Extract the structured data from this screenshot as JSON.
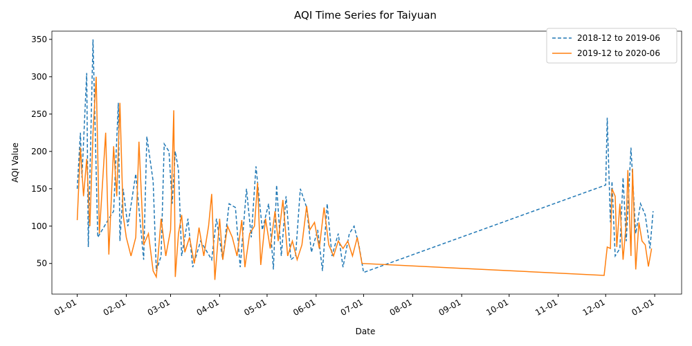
{
  "chart_data": {
    "type": "line",
    "title": "AQI Time Series for Taiyuan",
    "xlabel": "Date",
    "ylabel": "AQI Value",
    "xlim": [
      -16,
      382
    ],
    "ylim": [
      9,
      361
    ],
    "xticks": [
      {
        "value": 0,
        "label": "01-01"
      },
      {
        "value": 31,
        "label": "02-01"
      },
      {
        "value": 59,
        "label": "03-01"
      },
      {
        "value": 90,
        "label": "04-01"
      },
      {
        "value": 120,
        "label": "05-01"
      },
      {
        "value": 151,
        "label": "06-01"
      },
      {
        "value": 181,
        "label": "07-01"
      },
      {
        "value": 212,
        "label": "08-01"
      },
      {
        "value": 243,
        "label": "09-01"
      },
      {
        "value": 273,
        "label": "10-01"
      },
      {
        "value": 304,
        "label": "11-01"
      },
      {
        "value": 334,
        "label": "12-01"
      },
      {
        "value": 365,
        "label": "01-01"
      }
    ],
    "yticks": [
      50,
      100,
      150,
      200,
      250,
      300,
      350
    ],
    "legend": "upper right",
    "series": [
      {
        "name": "2018-12 to 2019-06",
        "color": "#1f77b4",
        "dash": true,
        "x": [
          0,
          2,
          3,
          6,
          7,
          10,
          13,
          20,
          23,
          26,
          27,
          29,
          32,
          37,
          42,
          44,
          48,
          50,
          53,
          55,
          58,
          60,
          62,
          64,
          66,
          70,
          73,
          78,
          85,
          88,
          92,
          96,
          100,
          103,
          107,
          110,
          113,
          117,
          121,
          124,
          126,
          129,
          132,
          135,
          138,
          141,
          145,
          148,
          152,
          155,
          158,
          161,
          165,
          168,
          172,
          175,
          178,
          181,
          334,
          335,
          337,
          338,
          340,
          343,
          345,
          347,
          350,
          353,
          356,
          359,
          362,
          364
        ],
        "values": [
          150,
          225,
          165,
          305,
          72,
          350,
          85,
          110,
          120,
          265,
          80,
          150,
          100,
          170,
          55,
          220,
          160,
          40,
          60,
          210,
          200,
          130,
          200,
          175,
          60,
          110,
          45,
          80,
          55,
          110,
          55,
          130,
          125,
          45,
          150,
          85,
          180,
          95,
          130,
          42,
          155,
          60,
          140,
          55,
          60,
          150,
          125,
          65,
          95,
          40,
          130,
          60,
          90,
          45,
          90,
          100,
          75,
          38,
          155,
          245,
          105,
          160,
          60,
          70,
          165,
          80,
          205,
          90,
          130,
          115,
          70,
          120
        ]
      },
      {
        "name": "2019-12 to 2020-06",
        "color": "#ff7f0e",
        "dash": false,
        "x": [
          0,
          2,
          4,
          6,
          8,
          10,
          12,
          14,
          18,
          20,
          23,
          25,
          27,
          29,
          31,
          34,
          37,
          39,
          42,
          45,
          48,
          50,
          53,
          56,
          59,
          61,
          62,
          64,
          66,
          68,
          71,
          74,
          77,
          80,
          83,
          85,
          87,
          90,
          92,
          95,
          98,
          101,
          104,
          106,
          109,
          112,
          114,
          116,
          119,
          122,
          125,
          127,
          130,
          133,
          136,
          139,
          142,
          145,
          147,
          150,
          153,
          156,
          159,
          162,
          165,
          168,
          171,
          174,
          177,
          180,
          333,
          335,
          337,
          338,
          340,
          341,
          343,
          345,
          347,
          348,
          350,
          351,
          353,
          355,
          357,
          359,
          361,
          363
        ],
        "values": [
          108,
          205,
          140,
          190,
          100,
          225,
          300,
          90,
          225,
          62,
          207,
          140,
          265,
          115,
          85,
          60,
          85,
          213,
          75,
          90,
          40,
          32,
          110,
          60,
          95,
          255,
          32,
          90,
          115,
          65,
          85,
          50,
          98,
          60,
          100,
          143,
          28,
          110,
          55,
          100,
          85,
          60,
          108,
          45,
          90,
          100,
          158,
          48,
          110,
          70,
          120,
          80,
          135,
          60,
          80,
          55,
          75,
          127,
          95,
          105,
          70,
          125,
          75,
          60,
          80,
          70,
          80,
          60,
          85,
          50,
          34,
          72,
          70,
          150,
          140,
          72,
          130,
          55,
          105,
          175,
          60,
          177,
          42,
          105,
          80,
          75,
          46,
          70
        ]
      }
    ]
  }
}
